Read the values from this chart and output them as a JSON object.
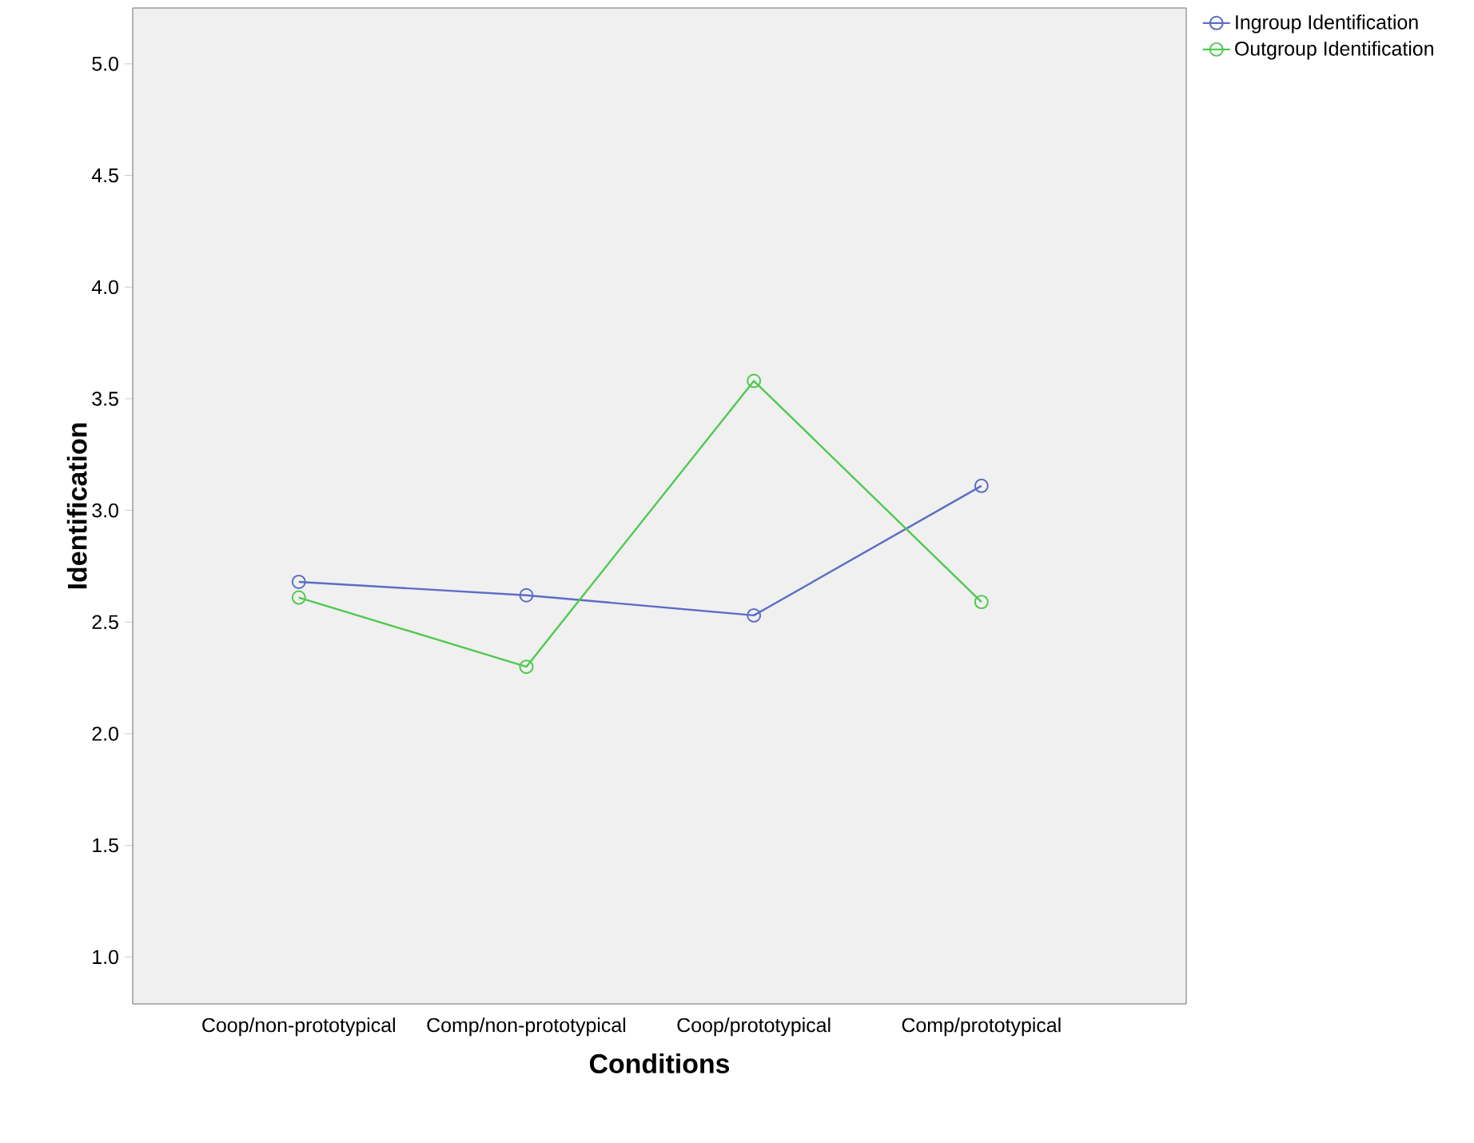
{
  "chart_data": {
    "type": "line",
    "xlabel": "Conditions",
    "ylabel": "Identification",
    "categories": [
      "Coop/non-prototypical",
      "Comp/non-prototypical",
      "Coop/prototypical",
      "Comp/prototypical"
    ],
    "series": [
      {
        "name": "Ingroup Identification",
        "color": "#5b6dc4",
        "values": [
          2.68,
          2.62,
          2.53,
          3.11
        ]
      },
      {
        "name": "Outgroup Identification",
        "color": "#4ec94e",
        "values": [
          2.61,
          2.3,
          3.58,
          2.59
        ]
      }
    ],
    "ylim": [
      0.79,
      5.25
    ],
    "yticks": [
      {
        "value": 1,
        "label": "1.0"
      },
      {
        "value": 1.5,
        "label": "1.5"
      },
      {
        "value": 2,
        "label": "2.0"
      },
      {
        "value": 2.5,
        "label": "2.5"
      },
      {
        "value": 3,
        "label": "3.0"
      },
      {
        "value": 3.5,
        "label": "3.5"
      },
      {
        "value": 4,
        "label": "4.0"
      },
      {
        "value": 4.5,
        "label": "4.5"
      },
      {
        "value": 5,
        "label": "5.0"
      }
    ],
    "marker": "circle",
    "line_style": "solid",
    "legend": "top right"
  }
}
